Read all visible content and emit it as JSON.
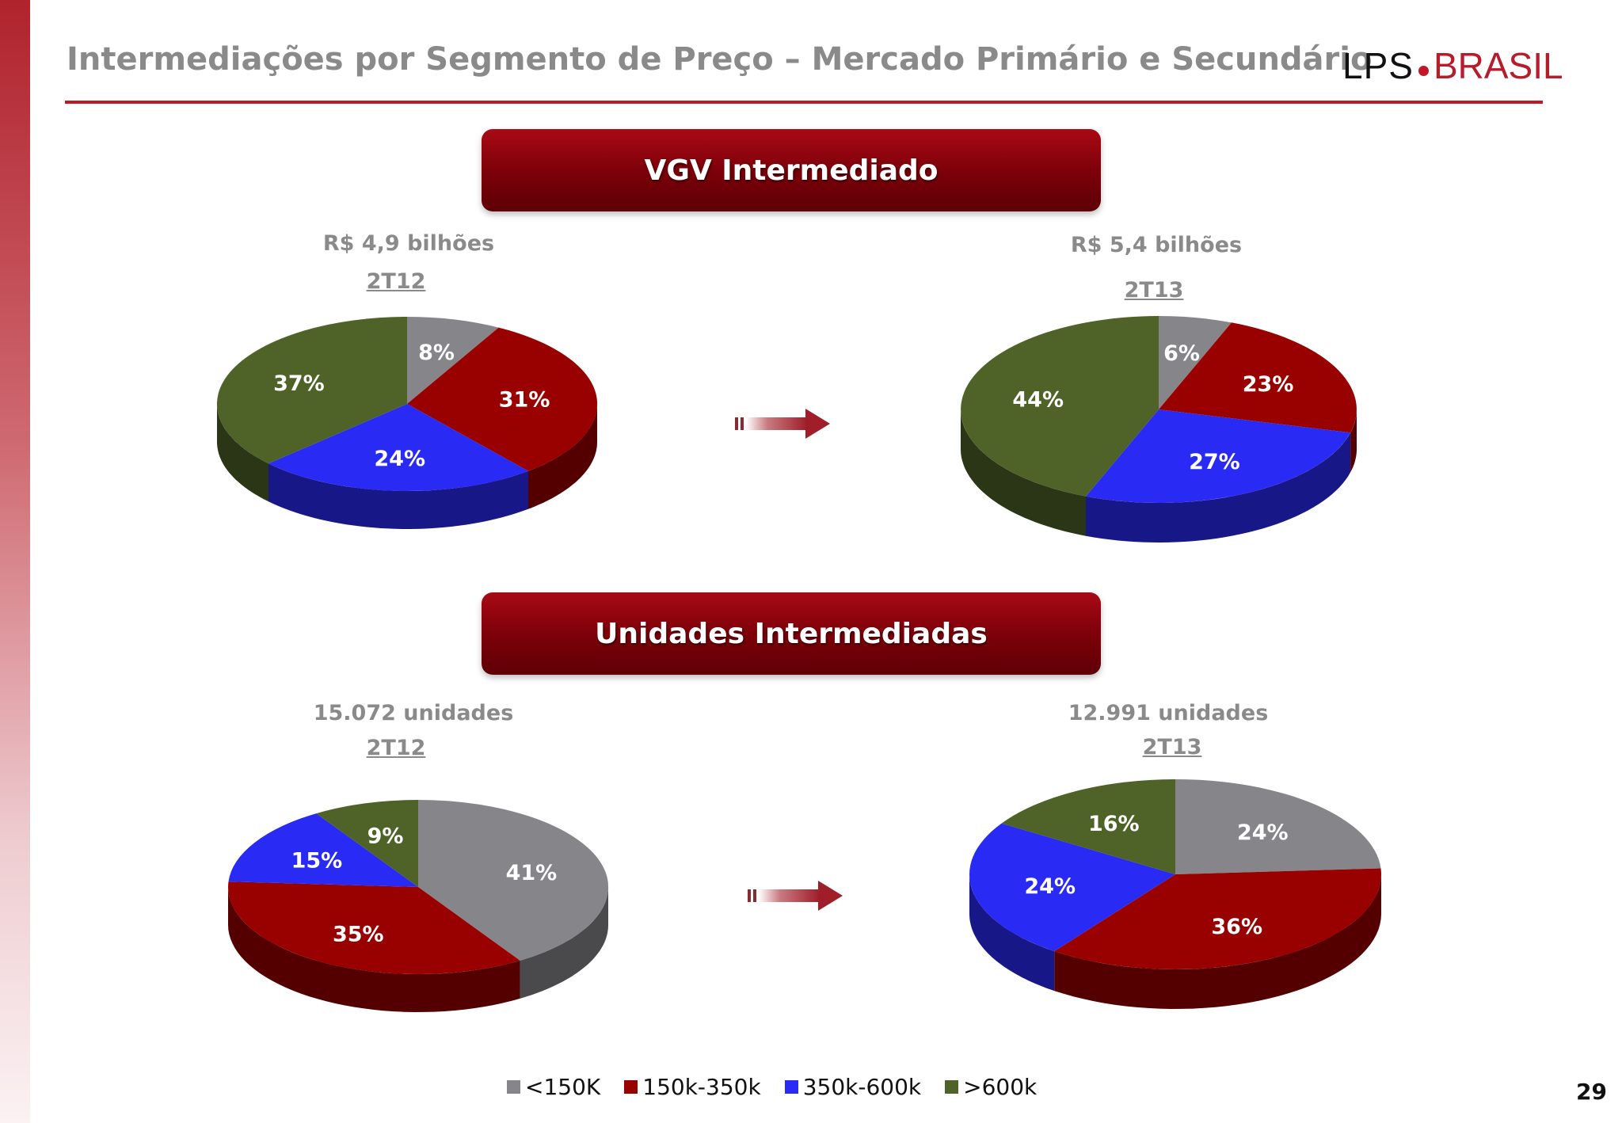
{
  "header": {
    "title": "Intermediações por Segmento de Preço – Mercado Primário e Secundário",
    "logo_left": "LPS",
    "logo_right": "BRASIL"
  },
  "sections": {
    "vgv": {
      "title": "VGV Intermediado"
    },
    "units": {
      "title": "Unidades Intermediadas"
    }
  },
  "colors": {
    "<150K": "#86868a",
    "150k-350k": "#990000",
    "350k-600k": "#2a2af5",
    "600k_plus": "#4f6228",
    "arrow": "#a8323a",
    "accent": "#c0182a"
  },
  "legend": {
    "items": [
      {
        "label": "<150K",
        "color": "#86868a"
      },
      {
        "label": "150k-350k",
        "color": "#990000"
      },
      {
        "label": "350k-600k",
        "color": "#2a2af5"
      },
      {
        "label": ">600k",
        "color": "#4f6228"
      }
    ]
  },
  "page_number": "29",
  "chart_data": [
    {
      "type": "pie",
      "title": "VGV Intermediado",
      "subtitle": "R$ 4,9 bilhões",
      "period": "2T12",
      "categories": [
        "<150K",
        "150k-350k",
        "350k-600k",
        ">600k"
      ],
      "values": [
        8,
        31,
        24,
        37
      ],
      "labels": [
        "8%",
        "31%",
        "24%",
        "37%"
      ]
    },
    {
      "type": "pie",
      "title": "VGV Intermediado",
      "subtitle": "R$ 5,4 bilhões",
      "period": "2T13",
      "categories": [
        "<150K",
        "150k-350k",
        "350k-600k",
        ">600k"
      ],
      "values": [
        6,
        23,
        27,
        44
      ],
      "labels": [
        "6%",
        "23%",
        "27%",
        "44%"
      ]
    },
    {
      "type": "pie",
      "title": "Unidades Intermediadas",
      "subtitle": "15.072 unidades",
      "period": "2T12",
      "categories": [
        "<150K",
        "150k-350k",
        "350k-600k",
        ">600k"
      ],
      "values": [
        41,
        35,
        15,
        9
      ],
      "labels": [
        "41%",
        "35%",
        "15%",
        "9%"
      ]
    },
    {
      "type": "pie",
      "title": "Unidades Intermediadas",
      "subtitle": "12.991 unidades",
      "period": "2T13",
      "categories": [
        "<150K",
        "150k-350k",
        "350k-600k",
        ">600k"
      ],
      "values": [
        24,
        36,
        24,
        16
      ],
      "labels": [
        "24%",
        "36%",
        "24%",
        "16%"
      ]
    }
  ]
}
